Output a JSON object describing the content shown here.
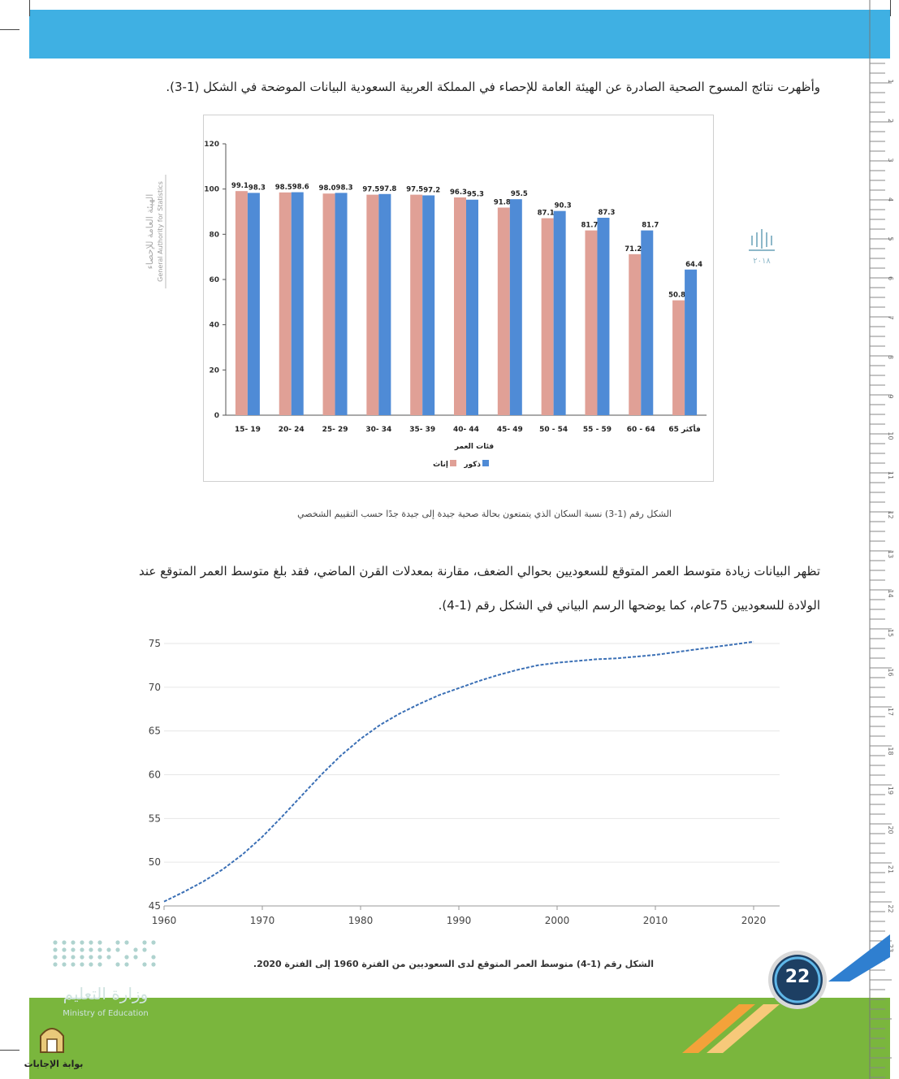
{
  "texts": {
    "intro": "وأظهرت نتائج المسوح الصحية الصادرة عن الهيئة العامة للإحصاء في المملكة العربية السعودية البيانات الموضحة في الشكل (1-3).",
    "para_line1": "تظهر البيانات زيادة متوسط العمر المتوقع للسعوديين بحوالي الضعف، مقارنة بمعدلات القرن الماضي، فقد بلغ متوسط العمر المتوقع عند",
    "para_line2": "الولادة للسعوديين 75عام، كما يوضحها الرسم البياني في الشكل رقم (1-4).",
    "caption1": "الشكل رقم (1-3) نسبة السكان الذي يتمتعون بحالة صحية جيدة إلى جيدة جدًا حسب التقييم الشخصي",
    "caption2": "الشكل رقم (1-4) متوسط العمر المتوقع لدى السعوديين من الفترة  1960  إلى الفترة  2020.",
    "gastat_ar": "الهيئة العامة للإحصاء",
    "gastat_en": "General Authority for Statistics",
    "emblem_text": "٢٠١٨",
    "moe_ar": "وزارة التعليم",
    "moe_en": "Ministry of Education",
    "answers_site": "بوابة الإجابات",
    "page_number": "22"
  },
  "colors": {
    "top_band": "#3fb0e3",
    "bottom_band": "#7ab63d",
    "female_bar": "#e0a096",
    "male_bar": "#4f8bd6",
    "line": "#3a6fb5"
  },
  "ruler_numbers": [
    "1",
    "2",
    "3",
    "4",
    "5",
    "6",
    "7",
    "8",
    "9",
    "10",
    "11",
    "12",
    "13",
    "14",
    "15",
    "16",
    "17",
    "18",
    "19",
    "20",
    "21",
    "22",
    "23"
  ],
  "chart_data": [
    {
      "type": "bar",
      "xlabel": "فئات العمر",
      "ylim": [
        0,
        120
      ],
      "yticks": [
        0,
        20,
        40,
        60,
        80,
        100,
        120
      ],
      "categories": [
        "15- 19",
        "20- 24",
        "25- 29",
        "30- 34",
        "35- 39",
        "40- 44",
        "45- 49",
        "50 - 54",
        "55 - 59",
        "60 - 64",
        "65 فأكثر"
      ],
      "series": [
        {
          "name": "إناث",
          "values": [
            99.1,
            98.5,
            98.0,
            97.5,
            97.5,
            96.3,
            91.8,
            87.1,
            81.7,
            71.2,
            50.8
          ],
          "labels": [
            "99.1",
            "98.5",
            "98.0",
            "97.5",
            "97.5",
            "96.3",
            "91.8",
            "87.1",
            "81.7",
            "71.2",
            "50.8"
          ]
        },
        {
          "name": "ذكور",
          "values": [
            98.3,
            98.6,
            98.3,
            97.8,
            97.2,
            95.3,
            95.5,
            90.3,
            87.3,
            81.7,
            64.4
          ],
          "labels": [
            "98.3",
            "98.6",
            "98.3",
            "97.8",
            "97.2",
            "95.3",
            "95.5",
            "90.3",
            "87.3",
            "81.7",
            "64.4"
          ]
        }
      ],
      "legend": "bottom-center",
      "grid": false
    },
    {
      "type": "line",
      "xlim": [
        1960,
        2020
      ],
      "xticks": [
        1960,
        1970,
        1980,
        1990,
        2000,
        2010,
        2020
      ],
      "ylim": [
        45,
        75
      ],
      "yticks": [
        45,
        50,
        55,
        60,
        65,
        70,
        75
      ],
      "grid": true,
      "series": [
        {
          "x": [
            1960,
            1962,
            1964,
            1966,
            1968,
            1970,
            1972,
            1974,
            1976,
            1978,
            1980,
            1982,
            1984,
            1986,
            1988,
            1990,
            1992,
            1994,
            1996,
            1998,
            2000,
            2002,
            2004,
            2006,
            2008,
            2010,
            2012,
            2014,
            2016,
            2018,
            2020
          ],
          "y": [
            45.5,
            46.6,
            47.8,
            49.2,
            50.9,
            52.9,
            55.2,
            57.6,
            60.0,
            62.2,
            64.1,
            65.7,
            67.0,
            68.1,
            69.1,
            69.9,
            70.7,
            71.4,
            72.0,
            72.5,
            72.8,
            73.0,
            73.2,
            73.3,
            73.5,
            73.7,
            74.0,
            74.3,
            74.6,
            74.9,
            75.2
          ]
        }
      ]
    }
  ]
}
